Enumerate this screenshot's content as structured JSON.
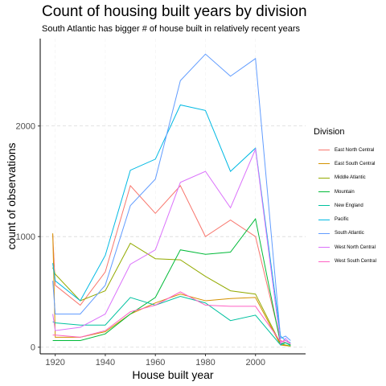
{
  "title": "Count of housing built years by division",
  "subtitle": "South Atlantic has bigger # of house built in relatively recent years",
  "chart_data": {
    "type": "line",
    "xlabel": "House built year",
    "ylabel": "count of observations",
    "xlim": [
      1914,
      2020
    ],
    "ylim": [
      -60,
      2790
    ],
    "x_ticks": [
      1920,
      1940,
      1960,
      1980,
      2000
    ],
    "y_ticks": [
      0,
      1000,
      2000
    ],
    "grid": true,
    "legend_title": "Division",
    "legend_position": "right",
    "x": [
      1919,
      1920,
      1930,
      1940,
      1950,
      1960,
      1970,
      1980,
      1990,
      2000,
      2010,
      2012,
      2014
    ],
    "series": [
      {
        "name": "East North Central",
        "color": "#F8766D",
        "values": [
          1020,
          560,
          380,
          680,
          1460,
          1210,
          1460,
          1000,
          1150,
          1000,
          60,
          40,
          20
        ]
      },
      {
        "name": "East South Central",
        "color": "#D39200",
        "values": [
          1030,
          90,
          90,
          140,
          300,
          400,
          480,
          420,
          440,
          450,
          20,
          15,
          10
        ]
      },
      {
        "name": "Middle Atlantic",
        "color": "#93AA00",
        "values": [
          720,
          660,
          420,
          510,
          940,
          800,
          790,
          640,
          510,
          480,
          30,
          20,
          10
        ]
      },
      {
        "name": "Mountain",
        "color": "#00BA38",
        "values": [
          60,
          60,
          60,
          120,
          300,
          450,
          880,
          840,
          860,
          1160,
          30,
          40,
          20
        ]
      },
      {
        "name": "New England",
        "color": "#00C19F",
        "values": [
          230,
          220,
          200,
          200,
          450,
          380,
          460,
          400,
          240,
          290,
          20,
          40,
          15
        ]
      },
      {
        "name": "Pacific",
        "color": "#00B9E3",
        "values": [
          760,
          600,
          420,
          830,
          1600,
          1700,
          2190,
          2140,
          1590,
          1800,
          100,
          60,
          40
        ]
      },
      {
        "name": "South Atlantic",
        "color": "#619CFF",
        "values": [
          600,
          300,
          300,
          560,
          1280,
          1520,
          2410,
          2650,
          2450,
          2610,
          80,
          100,
          60
        ]
      },
      {
        "name": "West North Central",
        "color": "#DB72FB",
        "values": [
          300,
          150,
          180,
          300,
          750,
          880,
          1490,
          1590,
          1260,
          1790,
          30,
          80,
          30
        ]
      },
      {
        "name": "West South Central",
        "color": "#FF61C3",
        "values": [
          110,
          110,
          90,
          150,
          320,
          380,
          500,
          380,
          370,
          370,
          50,
          60,
          30
        ]
      }
    ]
  }
}
